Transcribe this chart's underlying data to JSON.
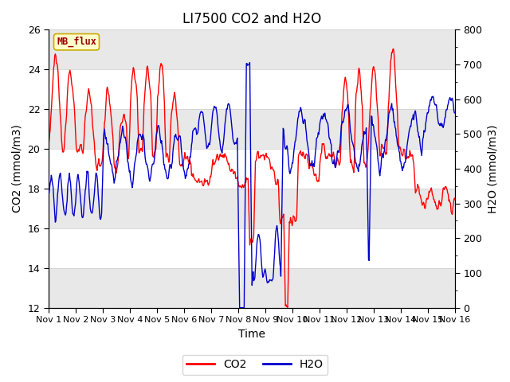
{
  "title": "LI7500 CO2 and H2O",
  "xlabel": "Time",
  "ylabel_left": "CO2 (mmol/m3)",
  "ylabel_right": "H2O (mmol/m3)",
  "ylim_left": [
    12,
    26
  ],
  "ylim_right": [
    0,
    800
  ],
  "yticks_left": [
    12,
    14,
    16,
    18,
    20,
    22,
    24,
    26
  ],
  "yticks_right": [
    0,
    100,
    200,
    300,
    400,
    500,
    600,
    700,
    800
  ],
  "xtick_labels": [
    "Nov 1",
    "Nov 2",
    "Nov 3",
    "Nov 4",
    "Nov 5",
    "Nov 6",
    "Nov 7",
    "Nov 8",
    "Nov 9",
    "Nov 10",
    "Nov 11",
    "Nov 12",
    "Nov 13",
    "Nov 14",
    "Nov 15",
    "Nov 16"
  ],
  "co2_color": "#FF0000",
  "h2o_color": "#0000CC",
  "line_width": 1.0,
  "background_color": "#ffffff",
  "plot_bg_color": "#ffffff",
  "band_light": "#e8e8e8",
  "label_text": "MB_flux",
  "label_bg": "#ffffcc",
  "label_border": "#ccaa00",
  "legend_co2": "CO2",
  "legend_h2o": "H2O",
  "title_fontsize": 12,
  "axis_label_fontsize": 10,
  "tick_fontsize": 9,
  "n_points": 720,
  "n_days": 15
}
